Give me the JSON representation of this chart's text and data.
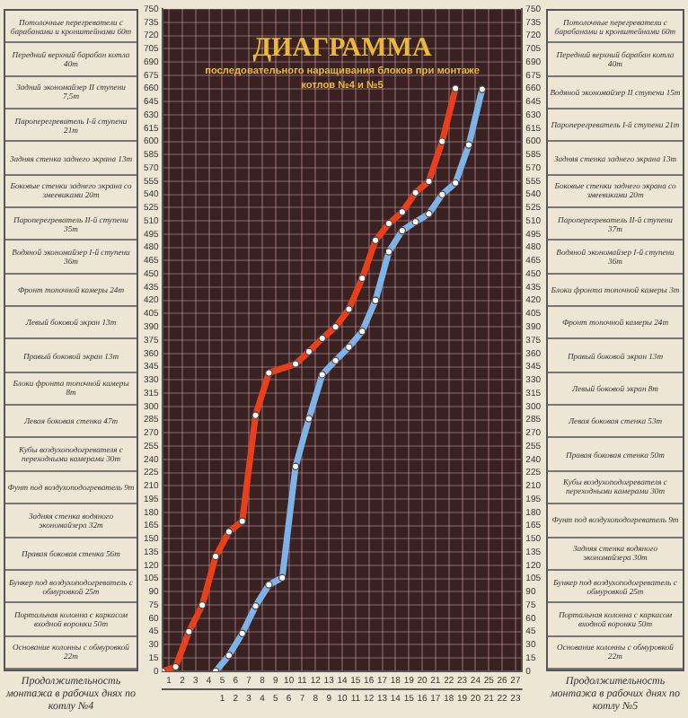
{
  "chart_data": {
    "type": "line",
    "title": "ДИАГРАММА",
    "subtitle": "последовательного наращивания блоков при монтаже котлов №4 и №5",
    "xlabel": "Продолжительность монтажа в рабочих днях по котлу №4",
    "x2label": "Продолжительность монтажа в рабочих днях по котлу №5",
    "xlim": [
      0,
      27
    ],
    "x2lim": [
      -4,
      23
    ],
    "xticks": [
      {
        "value": 0.5,
        "label": "1"
      },
      {
        "value": 1.5,
        "label": "2"
      },
      {
        "value": 2.5,
        "label": "3"
      },
      {
        "value": 3.5,
        "label": "4"
      },
      {
        "value": 4.5,
        "label": "5"
      },
      {
        "value": 5.5,
        "label": "6"
      },
      {
        "value": 6.5,
        "label": "7"
      },
      {
        "value": 7.5,
        "label": "8"
      },
      {
        "value": 8.5,
        "label": "9"
      },
      {
        "value": 9.5,
        "label": "10"
      },
      {
        "value": 10.5,
        "label": "11"
      },
      {
        "value": 11.5,
        "label": "12"
      },
      {
        "value": 12.5,
        "label": "13"
      },
      {
        "value": 13.5,
        "label": "14"
      },
      {
        "value": 14.5,
        "label": "15"
      },
      {
        "value": 15.5,
        "label": "16"
      },
      {
        "value": 16.5,
        "label": "17"
      },
      {
        "value": 17.5,
        "label": "18"
      },
      {
        "value": 18.5,
        "label": "19"
      },
      {
        "value": 19.5,
        "label": "20"
      },
      {
        "value": 20.5,
        "label": "21"
      },
      {
        "value": 21.5,
        "label": "22"
      },
      {
        "value": 22.5,
        "label": "23"
      },
      {
        "value": 23.5,
        "label": "24"
      },
      {
        "value": 24.5,
        "label": "25"
      },
      {
        "value": 25.5,
        "label": "26"
      },
      {
        "value": 26.5,
        "label": "27"
      }
    ],
    "x2ticks": [
      {
        "value": 0.5,
        "label": "1"
      },
      {
        "value": 1.5,
        "label": "2"
      },
      {
        "value": 2.5,
        "label": "3"
      },
      {
        "value": 3.5,
        "label": "4"
      },
      {
        "value": 4.5,
        "label": "5"
      },
      {
        "value": 5.5,
        "label": "6"
      },
      {
        "value": 6.5,
        "label": "7"
      },
      {
        "value": 7.5,
        "label": "8"
      },
      {
        "value": 8.5,
        "label": "9"
      },
      {
        "value": 9.5,
        "label": "10"
      },
      {
        "value": 10.5,
        "label": "11"
      },
      {
        "value": 11.5,
        "label": "12"
      },
      {
        "value": 12.5,
        "label": "13"
      },
      {
        "value": 13.5,
        "label": "14"
      },
      {
        "value": 14.5,
        "label": "15"
      },
      {
        "value": 15.5,
        "label": "16"
      },
      {
        "value": 16.5,
        "label": "17"
      },
      {
        "value": 17.5,
        "label": "18"
      },
      {
        "value": 18.5,
        "label": "19"
      },
      {
        "value": 19.5,
        "label": "20"
      },
      {
        "value": 20.5,
        "label": "21"
      },
      {
        "value": 21.5,
        "label": "22"
      },
      {
        "value": 22.5,
        "label": "23"
      }
    ],
    "ylim": [
      0,
      750
    ],
    "y2lim": [
      0,
      750
    ],
    "yticks": [
      0,
      15,
      30,
      45,
      60,
      75,
      90,
      105,
      120,
      135,
      150,
      165,
      180,
      195,
      210,
      225,
      240,
      255,
      270,
      285,
      300,
      315,
      330,
      345,
      360,
      375,
      390,
      405,
      420,
      435,
      450,
      465,
      480,
      495,
      510,
      525,
      540,
      555,
      570,
      585,
      600,
      615,
      630,
      645,
      660,
      675,
      690,
      705,
      720,
      735,
      750
    ],
    "y2ticks": [
      0,
      15,
      30,
      45,
      60,
      75,
      90,
      105,
      120,
      135,
      150,
      165,
      180,
      195,
      210,
      225,
      240,
      255,
      270,
      285,
      300,
      315,
      330,
      345,
      360,
      375,
      390,
      405,
      420,
      435,
      450,
      465,
      480,
      495,
      510,
      525,
      540,
      555,
      570,
      585,
      600,
      615,
      630,
      645,
      660,
      675,
      690,
      705,
      720,
      735,
      750
    ],
    "grid": true,
    "legend": false,
    "marker": "circle",
    "series": [
      {
        "color": "#e8401c",
        "x": [
          0,
          1,
          2,
          3,
          4,
          5,
          6,
          7,
          8,
          10,
          11,
          12,
          13,
          14,
          15,
          16,
          17,
          18,
          19,
          20,
          21,
          22
        ],
        "values": [
          0,
          5,
          45,
          75,
          130,
          158,
          170,
          290,
          338,
          348,
          362,
          377,
          390,
          410,
          445,
          488,
          507,
          520,
          542,
          555,
          600,
          660
        ]
      },
      {
        "color": "#7fb2e5",
        "x": [
          4,
          5,
          6,
          7,
          8,
          9,
          10,
          11,
          12,
          13,
          14,
          15,
          16,
          17,
          18,
          19,
          20,
          21,
          22,
          23,
          24
        ],
        "values": [
          0,
          18,
          43,
          74,
          98,
          106,
          232,
          286,
          336,
          352,
          367,
          385,
          420,
          475,
          499,
          509,
          518,
          540,
          553,
          596,
          659
        ]
      }
    ],
    "annotations": [
      "Потолочные перегреватели с барабанами и кронштейнами 60т",
      "Передний верхний барабан котла 40т",
      "Задний экономайзер II ступени 7,5т",
      "Пароперегреватель I-й ступени 21т",
      "Задняя стенка заднего экрана 13т",
      "Боковые стенки заднего экрана со змеевиками 20т",
      "Пароперегреватель II-й ступени 35т",
      "Водяной экономайзер I-й ступени 36т",
      "Фронт топочной камеры 24т",
      "Левый боковой экран 13т",
      "Правый боковой экран 13т",
      "Блоки фронта топочной камеры 8т",
      "Левая боковая стенка 47т",
      "Кубы воздухоподогревателя с переходными камерами 30т",
      "Фунт под воздухоподогреватель 9т",
      "Задняя стенка водяного экономайзера 32т",
      "Правая боковая стенка 56т",
      "Бункер под воздухоподогреватель с обмуровкой 25т",
      "Портальная колонна с каркасом входной воронки 50т",
      "Основание колонны с обмуровкой 22т",
      "Потолочные перегреватели с барабанами и кронштейнами 60т",
      "Передний верхний барабан котла 40т",
      "Водяной экономайзер II ступени 15т",
      "Пароперегреватель I-й ступени 21т",
      "Задняя стенка заднего экрана 13т",
      "Боковые стенки заднего экрана со змеевиками 20т",
      "Пароперегреватель II-й ступени 37т",
      "Водяной экономайзер I-й ступени 36т",
      "Блоки фронта топочной камеры 3т",
      "Фронт топочной камеры 24т",
      "Правый боковой экран 13т",
      "Левый боковой экран 8т",
      "Левая боковая стенка 53т",
      "Правая боковая стенка 50т",
      "Кубы воздухоподогревателя с переходными камерами 30т",
      "Фунт под воздухоподогреватель 9т",
      "Задняя стенка водяного экономайзера 30т",
      "Бункер под воздухоподогреватель с обмуровкой 25т",
      "Портальная колонна с каркасом входной воронки 50т",
      "Основание колонны с обмуровкой 22т"
    ]
  }
}
